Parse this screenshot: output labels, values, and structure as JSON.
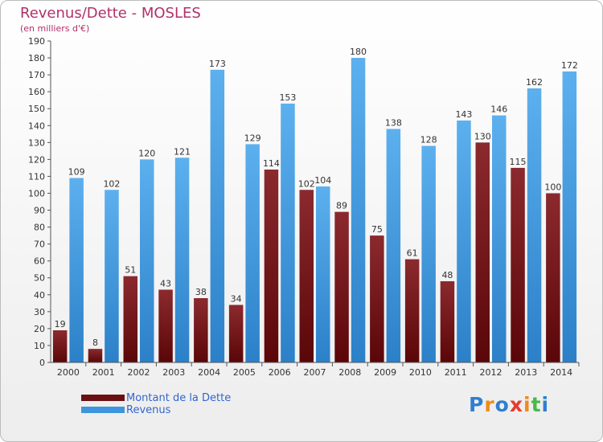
{
  "header": {
    "title": "Revenus/Dette - MOSLES",
    "subtitle": "(en milliers d'€)"
  },
  "chart_data": {
    "type": "bar",
    "title": "Revenus/Dette - MOSLES",
    "ylabel": "(en milliers d'€)",
    "categories": [
      "2000",
      "2001",
      "2002",
      "2003",
      "2004",
      "2005",
      "2006",
      "2007",
      "2008",
      "2009",
      "2010",
      "2011",
      "2012",
      "2013",
      "2014"
    ],
    "series": [
      {
        "name": "Montant de la Dette",
        "values": [
          19,
          8,
          51,
          43,
          38,
          34,
          114,
          102,
          89,
          75,
          61,
          48,
          130,
          115,
          100
        ]
      },
      {
        "name": "Revenus",
        "values": [
          109,
          102,
          120,
          121,
          173,
          129,
          153,
          104,
          180,
          138,
          128,
          143,
          146,
          162,
          172
        ]
      }
    ],
    "ylim": [
      0,
      190
    ],
    "ytick_step": 10,
    "grid": false,
    "legend": "bottom-left",
    "colors": {
      "dette": "#7a1518",
      "revenus": "#4aa3e6"
    }
  },
  "legend": {
    "items": [
      {
        "label": "Montant de la Dette",
        "color": "#6a1013"
      },
      {
        "label": "Revenus",
        "color": "#3d96dd"
      }
    ]
  },
  "logo": {
    "letters": [
      "P",
      "r",
      "o",
      "x",
      "i",
      "t",
      "i"
    ],
    "colors": [
      "#2f7fd0",
      "#f08a1c",
      "#2f7fd0",
      "#e83a2e",
      "#f08a1c",
      "#4ab84a",
      "#2f7fd0"
    ]
  }
}
